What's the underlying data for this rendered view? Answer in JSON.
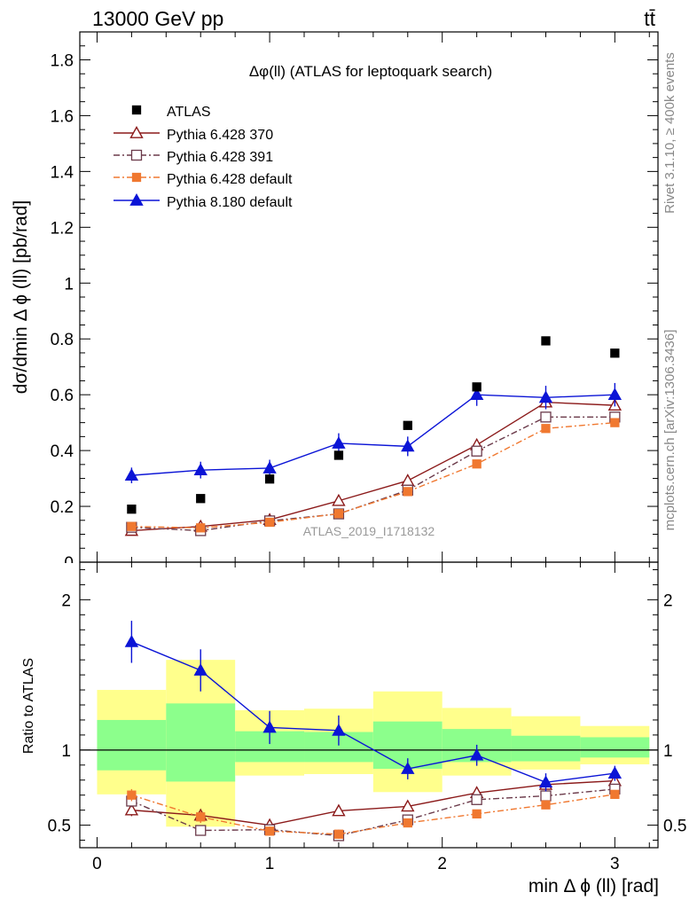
{
  "header": {
    "energy": "13000 GeV pp",
    "process": "tt̄"
  },
  "side": {
    "rivet": "Rivet 3.1.10, ≥ 400k events",
    "mcplots": "mcplots.cern.ch [arXiv:1306.3436]"
  },
  "chart_data": {
    "type": "scatter",
    "title": "Δφ(ll) (ATLAS for leptoquark search)",
    "xlabel": "min Δ ϕ (ll) [rad]",
    "ylabel": "dσ/dmin Δ ϕ (ll) [pb/rad]",
    "watermark": "ATLAS_2019_I1718132",
    "ratio_ylabel": "Ratio to ATLAS",
    "xlim": [
      -0.1,
      3.25
    ],
    "ylim": [
      0,
      1.9
    ],
    "ratio_ylim": [
      0.35,
      2.25
    ],
    "xticks": [
      0,
      1,
      2,
      3
    ],
    "yticks": [
      0.2,
      0.4,
      0.6,
      0.8,
      1,
      1.2,
      1.4,
      1.6,
      1.8
    ],
    "ytick_labels": [
      "0.2",
      "0.4",
      "0.6",
      "0.8",
      "1",
      "1.2",
      "1.4",
      "1.6",
      "1.8"
    ],
    "ytick_zero_label": "0",
    "ratio_yticks": [
      0.5,
      1,
      2
    ],
    "ratio_ytick_labels": [
      "0.5",
      "1",
      "2"
    ],
    "bins": [
      [
        0,
        0.4
      ],
      [
        0.4,
        0.8
      ],
      [
        0.8,
        1.2
      ],
      [
        1.2,
        1.6
      ],
      [
        1.6,
        2.0
      ],
      [
        2.0,
        2.4
      ],
      [
        2.4,
        2.8
      ],
      [
        2.8,
        3.2
      ]
    ],
    "x": [
      0.2,
      0.6,
      1.0,
      1.4,
      1.8,
      2.2,
      2.6,
      3.0
    ],
    "data": {
      "name": "ATLAS",
      "values": [
        0.19,
        0.228,
        0.298,
        0.383,
        0.49,
        0.628,
        0.793,
        0.749
      ],
      "band_stat_lo": [
        0.865,
        0.79,
        0.92,
        0.92,
        0.875,
        0.92,
        0.925,
        0.95
      ],
      "band_stat_hi": [
        1.2,
        1.31,
        1.125,
        1.12,
        1.19,
        1.14,
        1.095,
        1.085
      ],
      "band_tot_lo": [
        0.705,
        0.49,
        0.83,
        0.84,
        0.72,
        0.83,
        0.87,
        0.905
      ],
      "band_tot_hi": [
        1.4,
        1.6,
        1.265,
        1.275,
        1.39,
        1.28,
        1.225,
        1.16
      ]
    },
    "series": [
      {
        "name": "Pythia 6.428 370",
        "color": "#8b1a1a",
        "marker": "triangle-open",
        "dash": "solid",
        "values": [
          0.113,
          0.128,
          0.152,
          0.22,
          0.292,
          0.42,
          0.573,
          0.562
        ],
        "errors": [
          0.007,
          0.007,
          0.008,
          0.01,
          0.012,
          0.014,
          0.016,
          0.016
        ],
        "ratio": [
          0.6,
          0.565,
          0.5,
          0.595,
          0.625,
          0.715,
          0.77,
          0.795
        ],
        "ratio_err": [
          0.04,
          0.04,
          0.03,
          0.02,
          0.02,
          0.02,
          0.02,
          0.02
        ]
      },
      {
        "name": "Pythia 6.428 391",
        "color": "#6b3a4a",
        "marker": "square-open",
        "dash": "dashdot",
        "values": [
          0.125,
          0.113,
          0.148,
          0.173,
          0.258,
          0.398,
          0.52,
          0.52
        ],
        "errors": [
          0.007,
          0.007,
          0.008,
          0.009,
          0.011,
          0.013,
          0.015,
          0.015
        ],
        "ratio": [
          0.66,
          0.465,
          0.47,
          0.43,
          0.535,
          0.67,
          0.695,
          0.74
        ],
        "ratio_err": [
          0.04,
          0.03,
          0.03,
          0.02,
          0.02,
          0.02,
          0.02,
          0.02
        ]
      },
      {
        "name": "Pythia 6.428 default",
        "color": "#f07830",
        "marker": "square-filled",
        "dash": "dashdot",
        "values": [
          0.128,
          0.123,
          0.143,
          0.174,
          0.253,
          0.352,
          0.479,
          0.5
        ],
        "errors": [
          0.007,
          0.007,
          0.008,
          0.009,
          0.011,
          0.013,
          0.015,
          0.015
        ],
        "ratio": [
          0.7,
          0.555,
          0.46,
          0.44,
          0.515,
          0.575,
          0.635,
          0.705
        ],
        "ratio_err": [
          0.04,
          0.04,
          0.03,
          0.03,
          0.02,
          0.02,
          0.02,
          0.02
        ]
      },
      {
        "name": "Pythia 8.180 default",
        "color": "#0b14d6",
        "marker": "triangle-filled",
        "dash": "solid",
        "values": [
          0.311,
          0.33,
          0.337,
          0.426,
          0.415,
          0.6,
          0.59,
          0.6
        ],
        "errors": [
          0.028,
          0.03,
          0.03,
          0.036,
          0.035,
          0.04,
          0.042,
          0.042
        ],
        "ratio": [
          1.72,
          1.53,
          1.15,
          1.13,
          0.875,
          0.965,
          0.785,
          0.845
        ],
        "ratio_err": [
          0.14,
          0.14,
          0.11,
          0.1,
          0.07,
          0.07,
          0.06,
          0.05
        ]
      }
    ]
  }
}
